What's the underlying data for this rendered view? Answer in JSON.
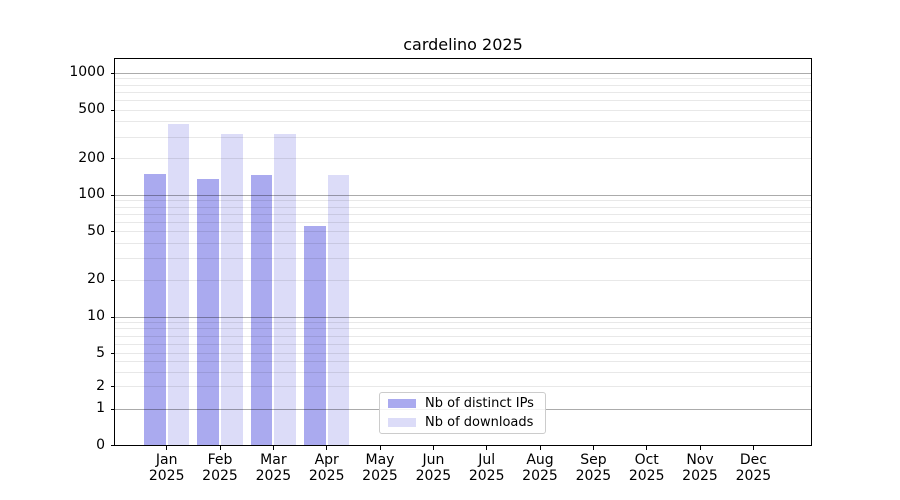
{
  "chart_data": {
    "type": "bar",
    "title": "cardelino 2025",
    "categories": [
      "Jan",
      "Feb",
      "Mar",
      "Apr",
      "May",
      "Jun",
      "Jul",
      "Aug",
      "Sep",
      "Oct",
      "Nov",
      "Dec"
    ],
    "x_tick_year_line": "2025",
    "series": [
      {
        "name": "Nb of distinct IPs",
        "color": "#aaaaef",
        "values": [
          147,
          134,
          144,
          55,
          0,
          0,
          0,
          0,
          0,
          0,
          0,
          0
        ]
      },
      {
        "name": "Nb of downloads",
        "color": "#dcdcf8",
        "values": [
          380,
          315,
          317,
          144,
          0,
          0,
          0,
          0,
          0,
          0,
          0,
          0
        ]
      }
    ],
    "y_axis": {
      "scale": "symlog",
      "tick_values": [
        0,
        1,
        2,
        5,
        10,
        20,
        50,
        100,
        200,
        500,
        1000
      ],
      "ylim": [
        0,
        1300
      ]
    },
    "grid": {
      "major_values": [
        1,
        10,
        100,
        1000
      ],
      "major_color": "rgba(0,0,0,0.33)",
      "minor_color": "rgba(0,0,0,0.09)",
      "orientation": "horizontal"
    },
    "legend": {
      "items": [
        {
          "label": "Nb of distinct IPs",
          "color": "#aaaaef"
        },
        {
          "label": "Nb of downloads",
          "color": "#dcdcf8"
        }
      ],
      "position": "lower-center"
    }
  }
}
